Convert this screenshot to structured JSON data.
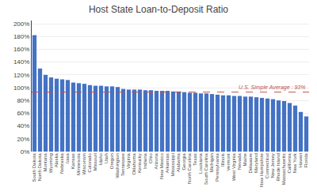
{
  "chart_data": {
    "type": "bar",
    "title": "Host State Loan-to-Deposit Ratio",
    "categories": [
      "South Dakota",
      "North Dakota",
      "Montana",
      "Wyoming",
      "Alaska",
      "Nebraska",
      "Iowa",
      "Kansas",
      "Minnesota",
      "Wisconsin",
      "Colorado",
      "Missouri",
      "Idaho",
      "Utah",
      "Oregon",
      "Washington",
      "Tennessee",
      "Virginia",
      "Oklahoma",
      "Kentucky",
      "Indiana",
      "Ohio",
      "Arizona",
      "New Mexico",
      "Arkansas",
      "Mississippi",
      "Alabama",
      "Georgia",
      "North Carolina",
      "Texas",
      "Louisiana",
      "South Carolina",
      "Michigan",
      "Pennsylvania",
      "Illinois",
      "Vermont",
      "West Virginia",
      "Nevada",
      "Maine",
      "Delaware",
      "Maryland",
      "New Hampshire",
      "Connecticut",
      "New Jersey",
      "Rhode Island",
      "Massachusetts",
      "California",
      "New York",
      "Hawaii",
      "Florida"
    ],
    "values": [
      182,
      130,
      120,
      116,
      114,
      113,
      112,
      108,
      107,
      106,
      104,
      103,
      103,
      102,
      102,
      101,
      98,
      97,
      97,
      97,
      96,
      96,
      95,
      95,
      95,
      94,
      94,
      93,
      92,
      92,
      91,
      91,
      90,
      89,
      88,
      88,
      87,
      87,
      86,
      86,
      85,
      84,
      83,
      82,
      80,
      79,
      76,
      72,
      62,
      55
    ],
    "color": "#4472C4",
    "reference_line": {
      "value": 93,
      "label": "U.S. Simple Average : 93%",
      "color": "#C0504D",
      "line_style": "dashed"
    },
    "ylim": [
      0,
      205
    ],
    "yticks": [
      {
        "value": 0,
        "label": "0%"
      },
      {
        "value": 20,
        "label": "20%"
      },
      {
        "value": 40,
        "label": "40%"
      },
      {
        "value": 60,
        "label": "60%"
      },
      {
        "value": 80,
        "label": "80%"
      },
      {
        "value": 100,
        "label": "100%"
      },
      {
        "value": 120,
        "label": "120%"
      },
      {
        "value": 140,
        "label": "140%"
      },
      {
        "value": 160,
        "label": "160%"
      },
      {
        "value": 180,
        "label": "180%"
      },
      {
        "value": 200,
        "label": "200%"
      }
    ],
    "grid": true
  }
}
